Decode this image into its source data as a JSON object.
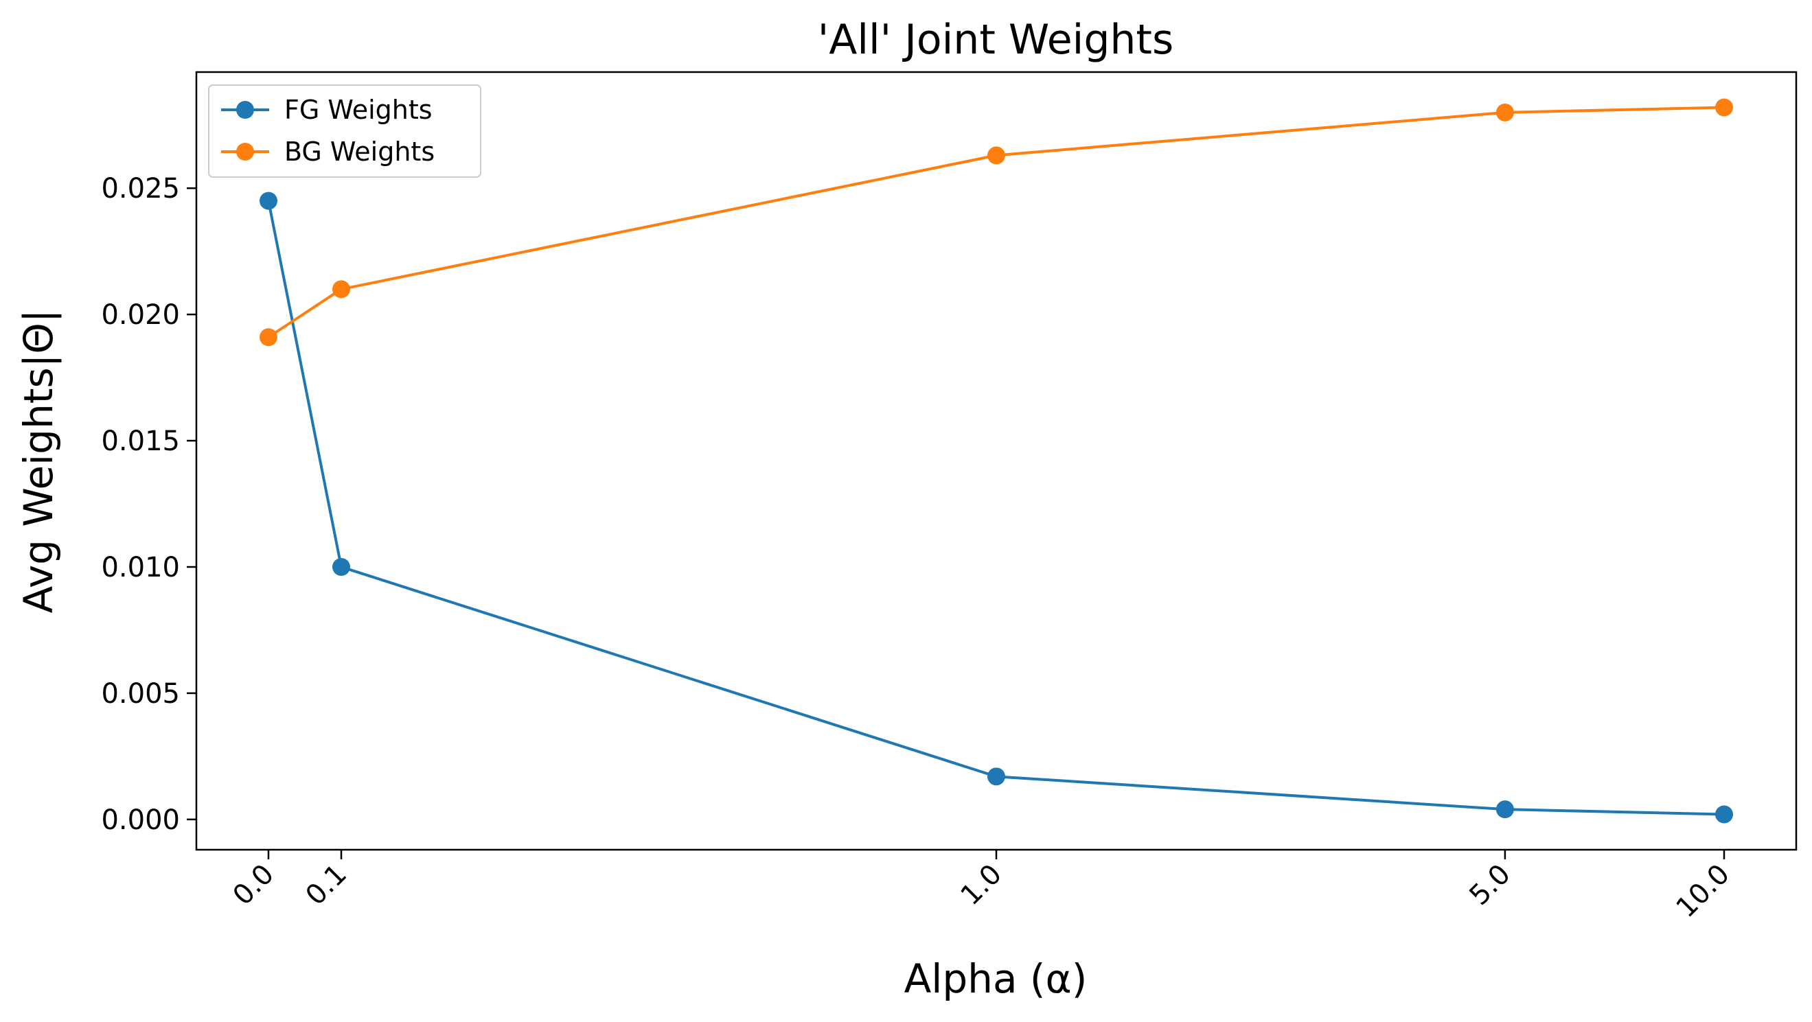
{
  "chart_data": {
    "type": "line",
    "title": "'All' Joint Weights",
    "xlabel": "Alpha (α)",
    "ylabel": "Avg Weights|Θ|",
    "x": [
      0.0,
      0.1,
      1.0,
      5.0,
      10.0
    ],
    "x_tick_labels": [
      "0.0",
      "0.1",
      "1.0",
      "5.0",
      "10.0"
    ],
    "y_ticks": [
      0.0,
      0.005,
      0.01,
      0.015,
      0.02,
      0.025
    ],
    "y_tick_labels": [
      "0.000",
      "0.005",
      "0.010",
      "0.015",
      "0.020",
      "0.025"
    ],
    "ylim": [
      -0.0012,
      0.0296
    ],
    "x_scale": "symlog",
    "grid": false,
    "legend_position": "upper-left",
    "series": [
      {
        "name": "FG Weights",
        "color": "#1f77b4",
        "values": [
          0.0245,
          0.01,
          0.0017,
          0.0004,
          0.0002
        ]
      },
      {
        "name": "BG Weights",
        "color": "#ff7f0e",
        "values": [
          0.0191,
          0.021,
          0.0263,
          0.028,
          0.0282
        ]
      }
    ]
  }
}
